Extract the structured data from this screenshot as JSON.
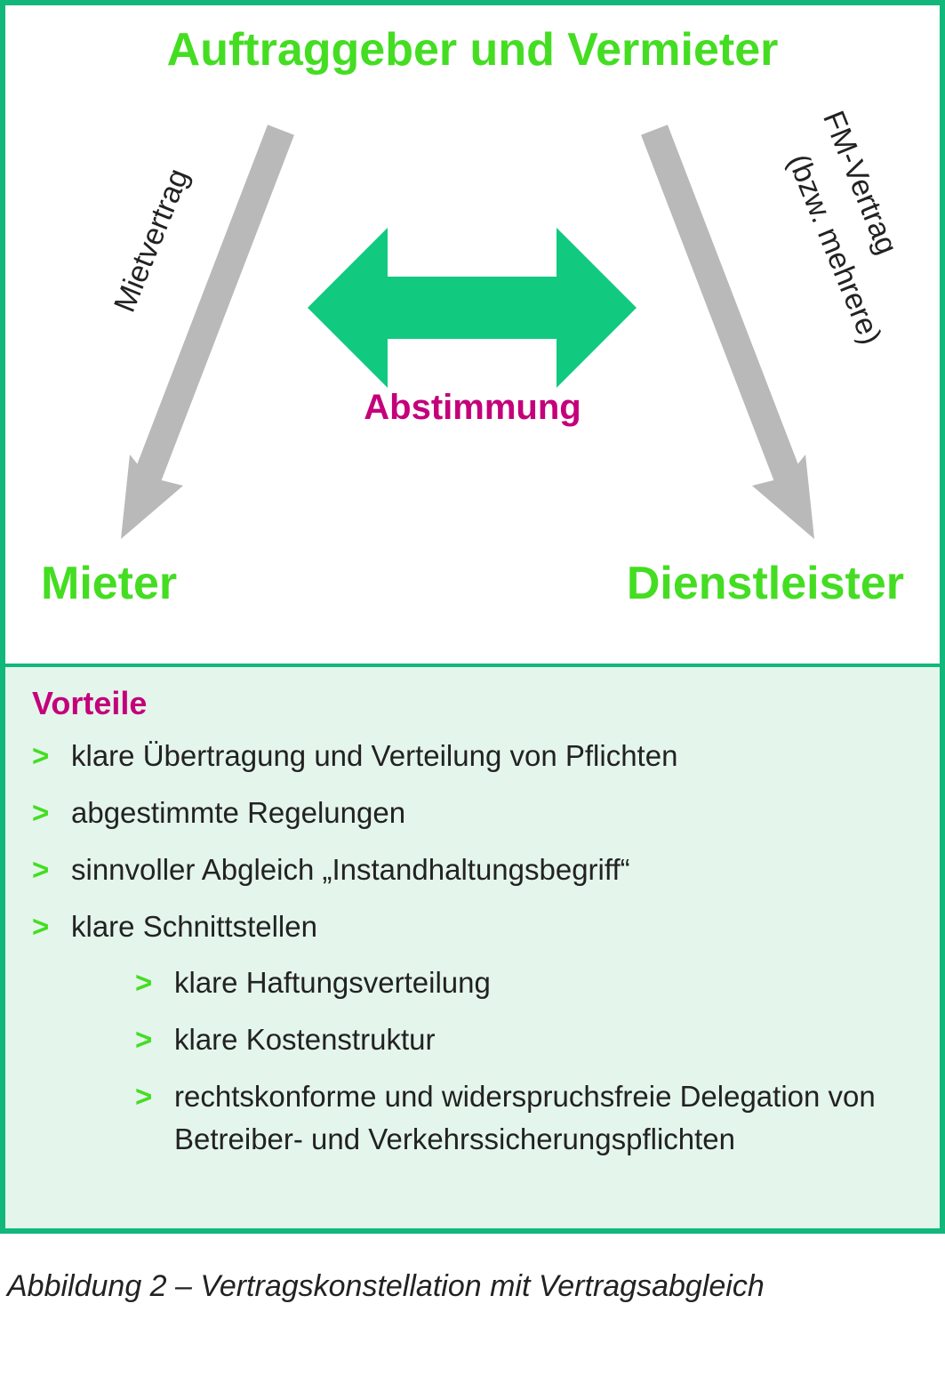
{
  "colors": {
    "border": "#11b77b",
    "green_bright": "#44dd22",
    "green_mid": "#11c97f",
    "magenta": "#c4007a",
    "grey_arrow": "#b9b9b9",
    "panel_bg": "#e4f5ec",
    "text": "#222222",
    "bullet": "#44dd22"
  },
  "diagram": {
    "type": "flowchart",
    "top_node": "Auftraggeber und Vermieter",
    "left_node": "Mieter",
    "right_node": "Dienstleister",
    "center_label": "Abstimmung",
    "left_edge_label": "Mietvertrag",
    "right_edge_label_line1": "FM-Vertrag",
    "right_edge_label_line2": "(bzw. mehrere)",
    "title_fontsize": 52,
    "node_fontsize": 52,
    "center_fontsize": 40,
    "edge_fontsize": 34
  },
  "advantages": {
    "heading": "Vorteile",
    "items": [
      "klare Übertragung und Verteilung von Pflichten",
      "abgestimmte Regelungen",
      "sinnvoller Abgleich „Instandhaltungsbegriff“",
      "klare Schnittstellen"
    ],
    "subitems": [
      "klare Haftungsverteilung",
      "klare Kostenstruktur",
      "rechtskonforme und widerspruchsfreie Delegation von Betreiber- und Verkehrssicherungspflichten"
    ],
    "heading_fontsize": 36,
    "item_fontsize": 33
  },
  "caption": "Abbildung 2 – Vertragskonstellation mit Vertragsabgleich"
}
